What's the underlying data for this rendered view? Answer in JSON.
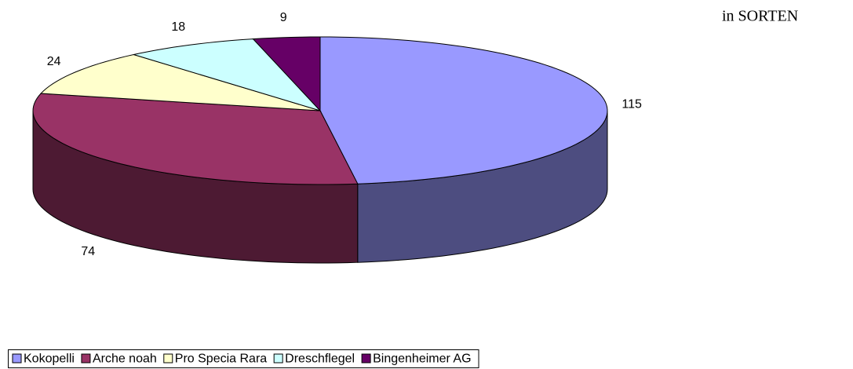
{
  "chart_data": {
    "type": "pie3d",
    "title": "in SORTEN",
    "categories": [
      "Kokopelli",
      "Arche noah",
      "Pro Specia Rara",
      "Dreschflegel",
      "Bingenheimer AG"
    ],
    "values": [
      115,
      74,
      24,
      18,
      9
    ],
    "colors": [
      "#9999ff",
      "#993366",
      "#ffffcc",
      "#ccffff",
      "#660066"
    ],
    "legend": "bottom"
  }
}
